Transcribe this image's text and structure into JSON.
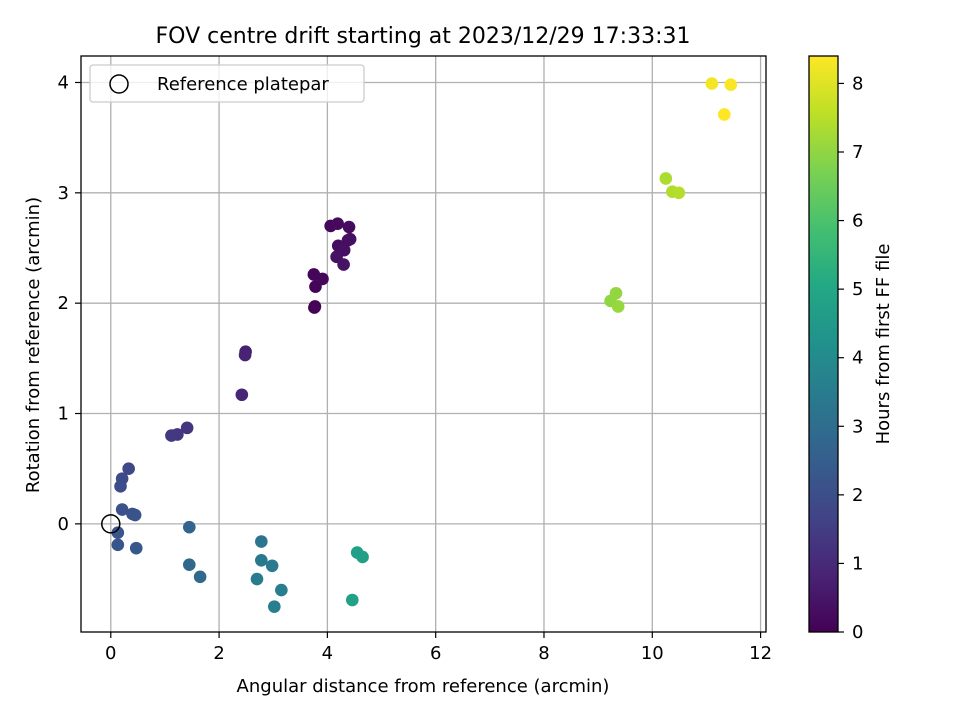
{
  "chart_data": {
    "type": "scatter",
    "title": "FOV centre drift starting at 2023/12/29 17:33:31",
    "xlabel": "Angular distance from reference (arcmin)",
    "ylabel": "Rotation from reference (arcmin)",
    "xlim": [
      -0.55,
      12.1
    ],
    "ylim": [
      -0.98,
      4.24
    ],
    "xticks": [
      0,
      2,
      4,
      6,
      8,
      10,
      12
    ],
    "yticks": [
      0,
      1,
      2,
      3,
      4
    ],
    "grid": true,
    "legend": {
      "placement": "upper-left",
      "label": "Reference platepar"
    },
    "reference_point": {
      "x": 0,
      "y": 0
    },
    "colorbar": {
      "label": "Hours from first FF file",
      "range": [
        0,
        8.4
      ],
      "ticks": [
        0,
        1,
        2,
        3,
        4,
        5,
        6,
        7,
        8
      ],
      "colormap": "viridis"
    },
    "points": [
      {
        "x": 3.76,
        "y": 1.96,
        "c": 0.02
      },
      {
        "x": 3.77,
        "y": 1.97,
        "c": 0.05
      },
      {
        "x": 3.78,
        "y": 2.15,
        "c": 0.08
      },
      {
        "x": 3.75,
        "y": 2.26,
        "c": 0.12
      },
      {
        "x": 3.91,
        "y": 2.22,
        "c": 0.15
      },
      {
        "x": 4.06,
        "y": 2.7,
        "c": 0.18
      },
      {
        "x": 4.19,
        "y": 2.72,
        "c": 0.21
      },
      {
        "x": 4.4,
        "y": 2.69,
        "c": 0.25
      },
      {
        "x": 4.2,
        "y": 2.52,
        "c": 0.28
      },
      {
        "x": 4.38,
        "y": 2.57,
        "c": 0.31
      },
      {
        "x": 4.42,
        "y": 2.58,
        "c": 0.34
      },
      {
        "x": 4.31,
        "y": 2.48,
        "c": 0.37
      },
      {
        "x": 4.17,
        "y": 2.42,
        "c": 0.4
      },
      {
        "x": 4.3,
        "y": 2.35,
        "c": 0.43
      },
      {
        "x": 2.49,
        "y": 1.56,
        "c": 0.75
      },
      {
        "x": 2.48,
        "y": 1.53,
        "c": 0.8
      },
      {
        "x": 2.42,
        "y": 1.17,
        "c": 0.9
      },
      {
        "x": 1.41,
        "y": 0.87,
        "c": 1.25
      },
      {
        "x": 1.23,
        "y": 0.81,
        "c": 1.35
      },
      {
        "x": 1.12,
        "y": 0.8,
        "c": 1.4
      },
      {
        "x": 0.33,
        "y": 0.5,
        "c": 1.85
      },
      {
        "x": 0.21,
        "y": 0.41,
        "c": 1.9
      },
      {
        "x": 0.18,
        "y": 0.34,
        "c": 1.95
      },
      {
        "x": 0.21,
        "y": 0.13,
        "c": 2.05
      },
      {
        "x": 0.4,
        "y": 0.09,
        "c": 2.1
      },
      {
        "x": 0.45,
        "y": 0.08,
        "c": 2.15
      },
      {
        "x": 0.13,
        "y": -0.08,
        "c": 2.2
      },
      {
        "x": 0.13,
        "y": -0.19,
        "c": 2.25
      },
      {
        "x": 0.47,
        "y": -0.22,
        "c": 2.3
      },
      {
        "x": 1.45,
        "y": -0.03,
        "c": 2.7
      },
      {
        "x": 1.45,
        "y": -0.37,
        "c": 2.8
      },
      {
        "x": 1.65,
        "y": -0.48,
        "c": 2.85
      },
      {
        "x": 2.78,
        "y": -0.16,
        "c": 3.3
      },
      {
        "x": 2.78,
        "y": -0.33,
        "c": 3.35
      },
      {
        "x": 2.98,
        "y": -0.38,
        "c": 3.4
      },
      {
        "x": 2.7,
        "y": -0.5,
        "c": 3.45
      },
      {
        "x": 3.15,
        "y": -0.6,
        "c": 3.55
      },
      {
        "x": 3.02,
        "y": -0.75,
        "c": 3.6
      },
      {
        "x": 4.55,
        "y": -0.26,
        "c": 4.7
      },
      {
        "x": 4.65,
        "y": -0.3,
        "c": 4.75
      },
      {
        "x": 4.46,
        "y": -0.69,
        "c": 4.8
      },
      {
        "x": 9.23,
        "y": 2.02,
        "c": 7.0
      },
      {
        "x": 9.33,
        "y": 2.09,
        "c": 7.05
      },
      {
        "x": 9.37,
        "y": 1.97,
        "c": 7.1
      },
      {
        "x": 10.25,
        "y": 3.13,
        "c": 7.35
      },
      {
        "x": 10.37,
        "y": 3.01,
        "c": 7.4
      },
      {
        "x": 10.49,
        "y": 3.0,
        "c": 7.45
      },
      {
        "x": 11.1,
        "y": 3.99,
        "c": 8.3
      },
      {
        "x": 11.45,
        "y": 3.98,
        "c": 8.35
      },
      {
        "x": 11.33,
        "y": 3.71,
        "c": 8.4
      }
    ]
  }
}
